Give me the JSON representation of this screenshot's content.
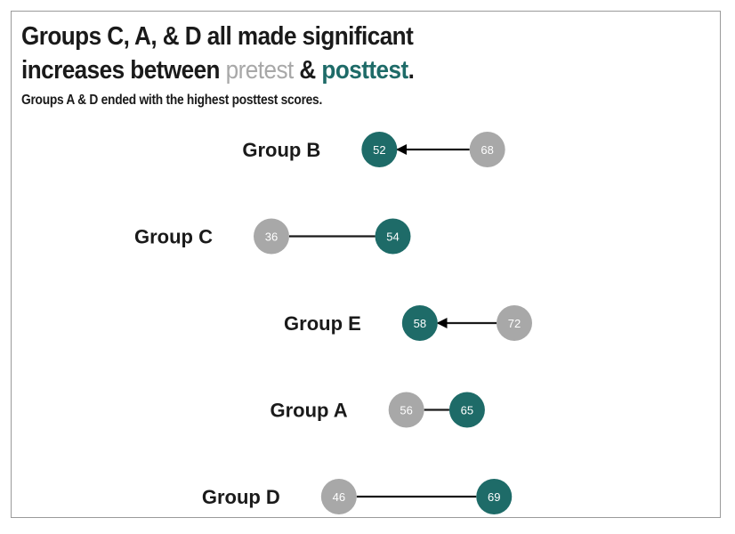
{
  "title": {
    "line1": "Groups C, A, & D all made significant",
    "line2_prefix": "increases between ",
    "pretest_word": "pretest",
    "connector": " & ",
    "posttest_word": "posttest",
    "end": "."
  },
  "subtitle": "Groups A & D ended with the highest posttest scores.",
  "colors": {
    "pretest": "#a8a8a8",
    "posttest": "#1e6b68",
    "line": "#1a1a1a",
    "frame": "#9a9a9a"
  },
  "chart_data": {
    "type": "dumbbell",
    "title": "Groups C, A, & D all made significant increases between pretest & posttest.",
    "subtitle": "Groups A & D ended with the highest posttest scores.",
    "series_names": [
      "pretest",
      "posttest"
    ],
    "categories": [
      "Group B",
      "Group C",
      "Group E",
      "Group A",
      "Group D"
    ],
    "pretest": [
      68,
      36,
      72,
      56,
      46
    ],
    "posttest": [
      52,
      54,
      58,
      65,
      69
    ],
    "arrow_on_decrease": true,
    "xlim": [
      36,
      72
    ],
    "grid": false
  }
}
